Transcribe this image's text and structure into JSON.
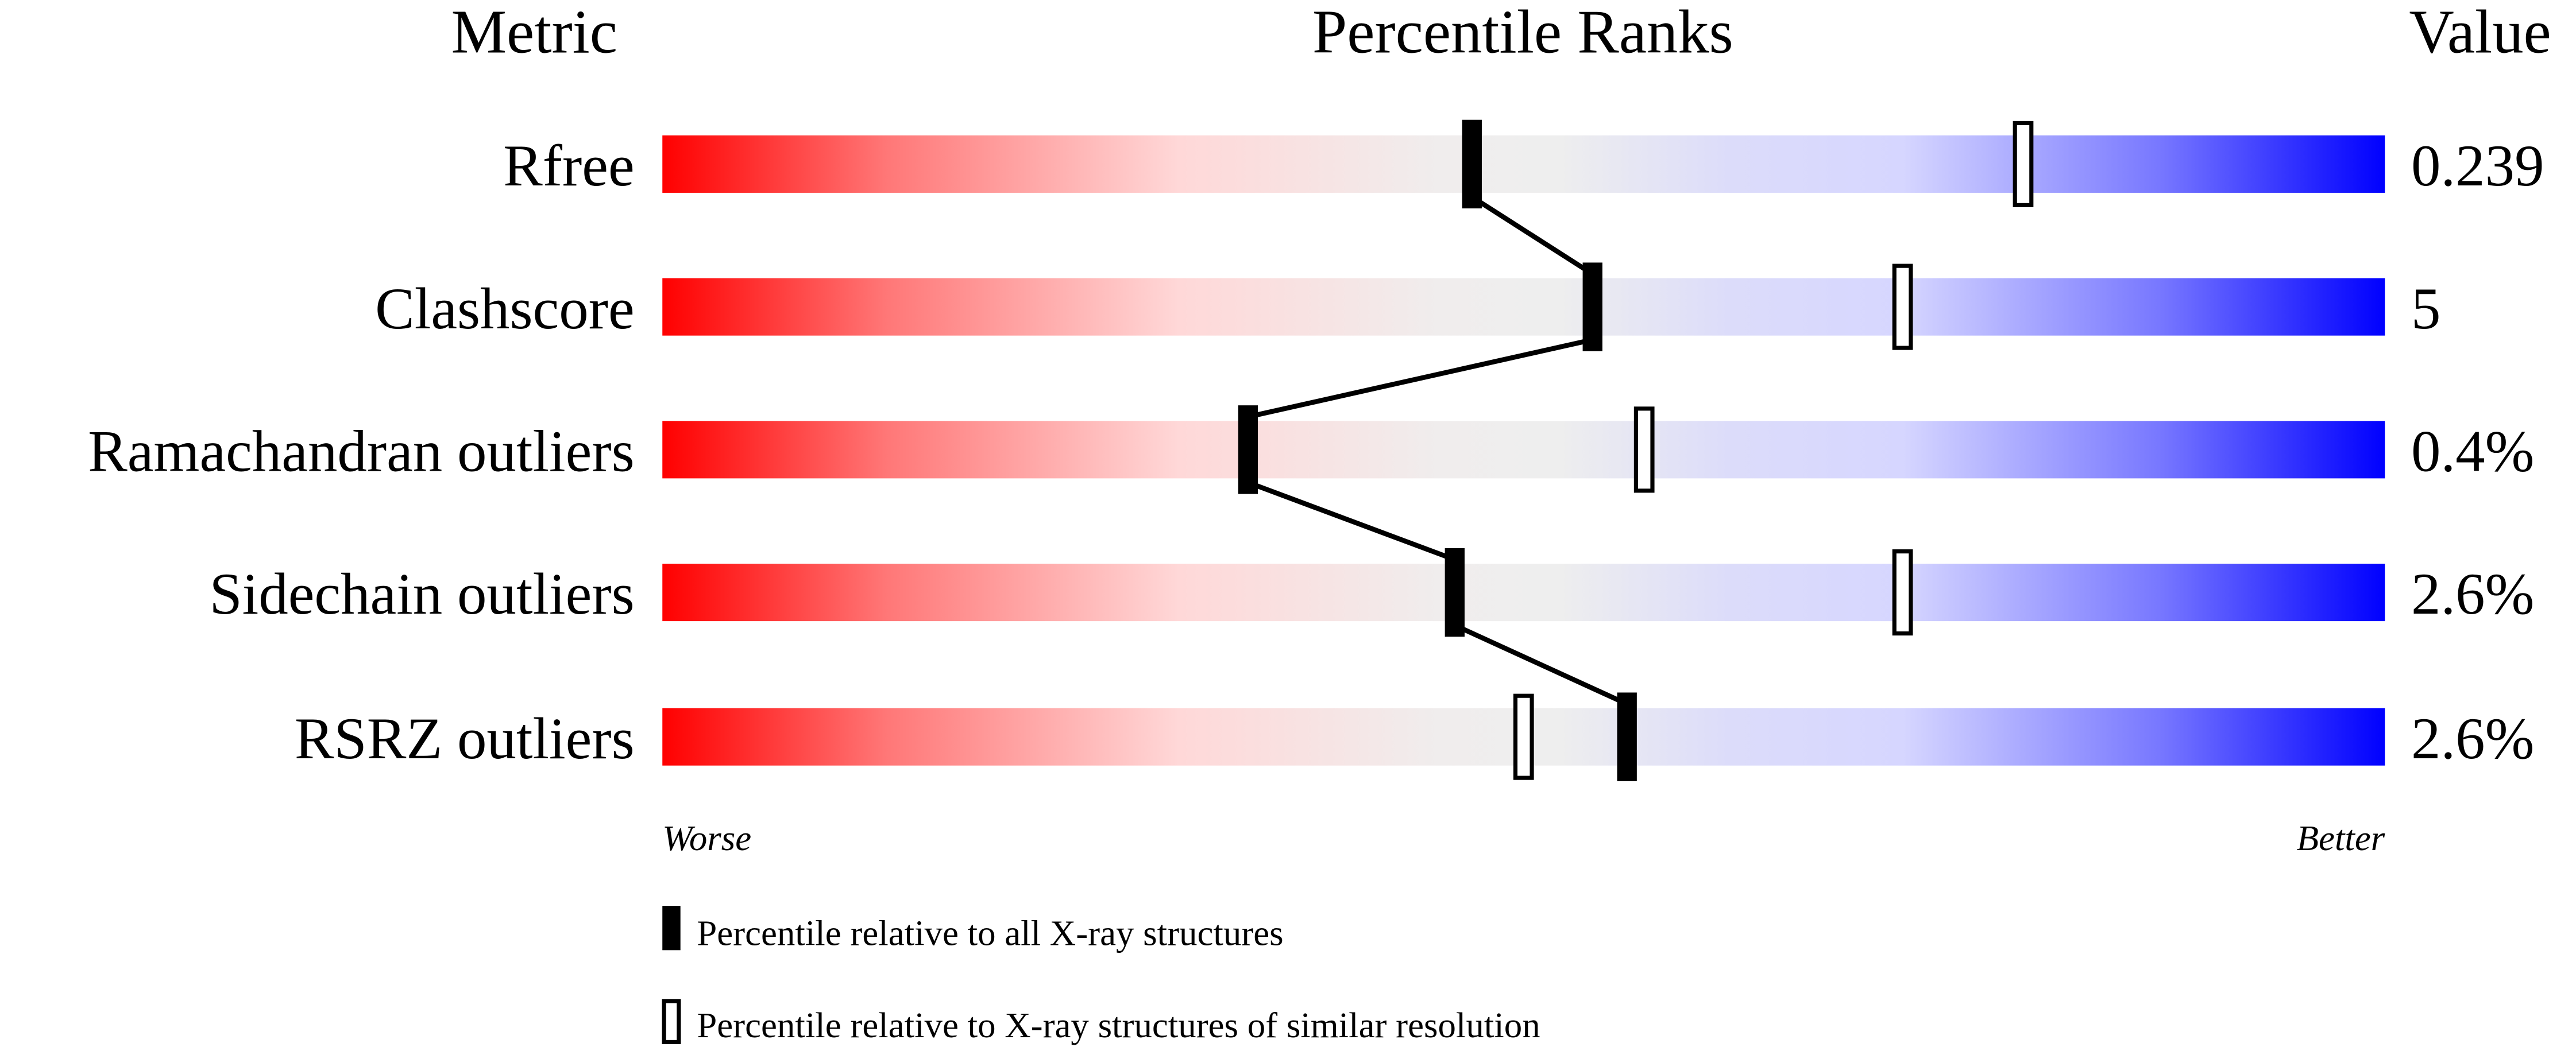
{
  "chart_data": {
    "type": "bar",
    "headers": {
      "metric": "Metric",
      "ranks": "Percentile Ranks",
      "value": "Value"
    },
    "categories": [
      "Rfree",
      "Clashscore",
      "Ramachandran outliers",
      "Sidechain outliers",
      "RSRZ outliers"
    ],
    "values": [
      "0.239",
      "5",
      "0.4%",
      "2.6%",
      "2.6%"
    ],
    "series": [
      {
        "name": "Percentile relative to all X-ray structures",
        "marker": "filled",
        "percentiles": [
          47,
          54,
          34,
          46,
          56
        ]
      },
      {
        "name": "Percentile relative to X-ray structures of similar resolution",
        "marker": "open",
        "percentiles": [
          79,
          72,
          57,
          72,
          50
        ]
      }
    ],
    "xlim": [
      0,
      100
    ],
    "axis_labels": {
      "left": "Worse",
      "right": "Better"
    },
    "colors": {
      "worse": "#ff0000",
      "middle": "#eeeeee",
      "better": "#0000ff"
    },
    "legend_placement": "bottom"
  }
}
